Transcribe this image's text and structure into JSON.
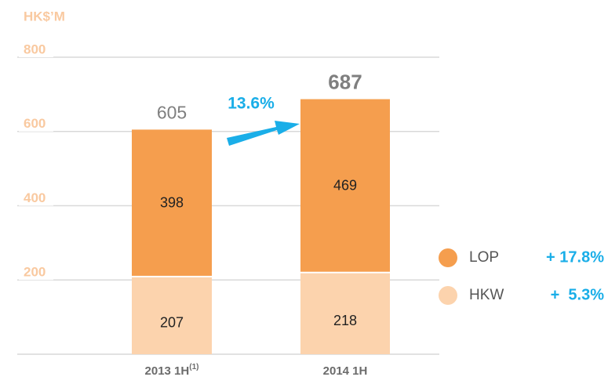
{
  "chart_data": {
    "type": "stacked_bar",
    "y_label": "HK$’M",
    "categories": [
      "2013 1H",
      "2014 1H"
    ],
    "category_notes": [
      "(1)",
      null
    ],
    "series": [
      {
        "name": "HKW",
        "color": "#fcd3ad",
        "values": [
          207,
          218
        ],
        "growth": "+  5.3%"
      },
      {
        "name": "LOP",
        "color": "#f59e4e",
        "values": [
          398,
          469
        ],
        "growth": "+ 17.8%"
      }
    ],
    "totals": [
      605,
      687
    ],
    "growth_annotation": "13.6%",
    "ylim": [
      0,
      800
    ],
    "yticks": [
      200,
      400,
      600,
      800
    ],
    "grid": true,
    "legend": "right"
  }
}
